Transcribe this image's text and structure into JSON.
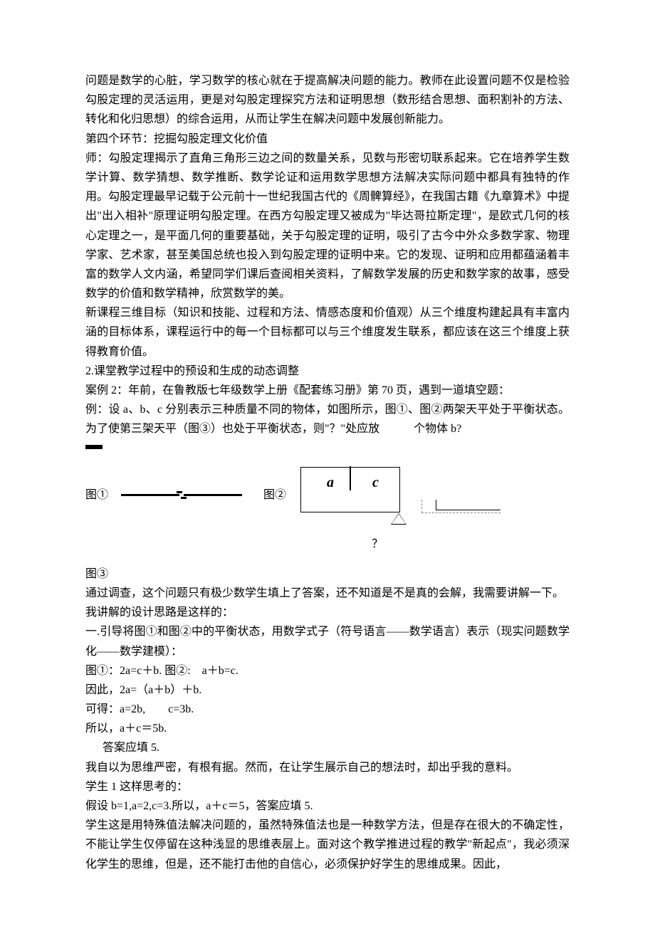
{
  "p1": "问题是数学的心脏，学习数学的核心就在于提高解决问题的能力。教师在此设置问题不仅是检验勾股定理的灵活运用，更是对勾股定理探究方法和证明思想（数形结合思想、面积割补的方法、转化和化归思想）的综合运用，从而让学生在解决问题中发展创新能力。",
  "p2": "第四个环节：挖掘勾股定理文化价值",
  "p3": "师：勾股定理揭示了直角三角形三边之间的数量关系，见数与形密切联系起来。它在培养学生数学计算、数学猜想、数学推断、数学论证和运用数学思想方法解决实际问题中都具有独特的作用。勾股定理最早记载于公元前十一世纪我国古代的《周髀算经》，在我国古籍《九章算术》中提出\"出入相补\"原理证明勾股定理。在西方勾股定理又被成为\"毕达哥拉斯定理\"，是欧式几何的核心定理之一，是平面几何的重要基础，关于勾股定理的证明，吸引了古今中外众多数学家、物理学家、艺术家，甚至美国总统也投入到勾股定理的证明中来。它的发现、证明和应用都蕴涵着丰富的数学人文内涵，希望同学们课后查阅相关资料，了解数学发展的历史和数学家的故事，感受数学的价值和数学精神，欣赏数学的美。",
  "p4": "新课程三维目标（知识和技能、过程和方法、情感态度和价值观）从三个维度构建起具有丰富内涵的目标体系，课程运行中的每一个目标都可以与三个维度发生联系，都应该在这三个维度上获得教育价值。",
  "p5": "2.课堂教学过程中的预设和生成的动态调整",
  "p6": "案例 2：年前，在鲁教版七年级数学上册《配套练习册》第 70 页，遇到一道填空题：",
  "p7": "例：设 a、b、c 分别表示三种质量不同的物体，如图所示，图①、图②两架天平处于平衡状态。为了使第三架天平（图③）也处于平衡状态，则\"？\"处应放　　　个物体 b?",
  "figLabel1": "图①",
  "figLabel2": "图②",
  "letterA": "a",
  "letterC": "c",
  "qmark": "？",
  "figLabel3": "图③",
  "p8": "通过调查，这个问题只有极少数学生填上了答案，还不知道是不是真的会解，我需要讲解一下。",
  "p9": "我讲解的设计思路是这样的：",
  "p10": "一.引导将图①和图②中的平衡状态，用数学式子（符号语言——数学语言）表示（现实问题数学化——数学建模）：",
  "p11": "图①：2a=c＋b.  图②:　a＋b=c.",
  "p12": "因此，2a=（a＋b）＋b.",
  "p13": "可得：a=2b,　　c=3b.",
  "p14": "所以，a＋c＝5b.",
  "p15": "　答案应填 5.",
  "p16": "我自以为思维严密，有根有据。然而，在让学生展示自己的想法时，却出乎我的意料。",
  "p17": "学生 1 这样思考的：",
  "p18": "假设 b=1,a=2,c=3.所以，a＋c＝5，答案应填 5.",
  "p19": "学生这是用特殊值法解决问题的，虽然特殊值法也是一种数学方法，但是存在很大的不确定性，不能让学生仅停留在这种浅显的思维表层上。面对这个教学推进过程的教学\"新起点\"，我必须深化学生的思维，但是，还不能打击他的自信心，必须保护好学生的思维成果。因此，"
}
